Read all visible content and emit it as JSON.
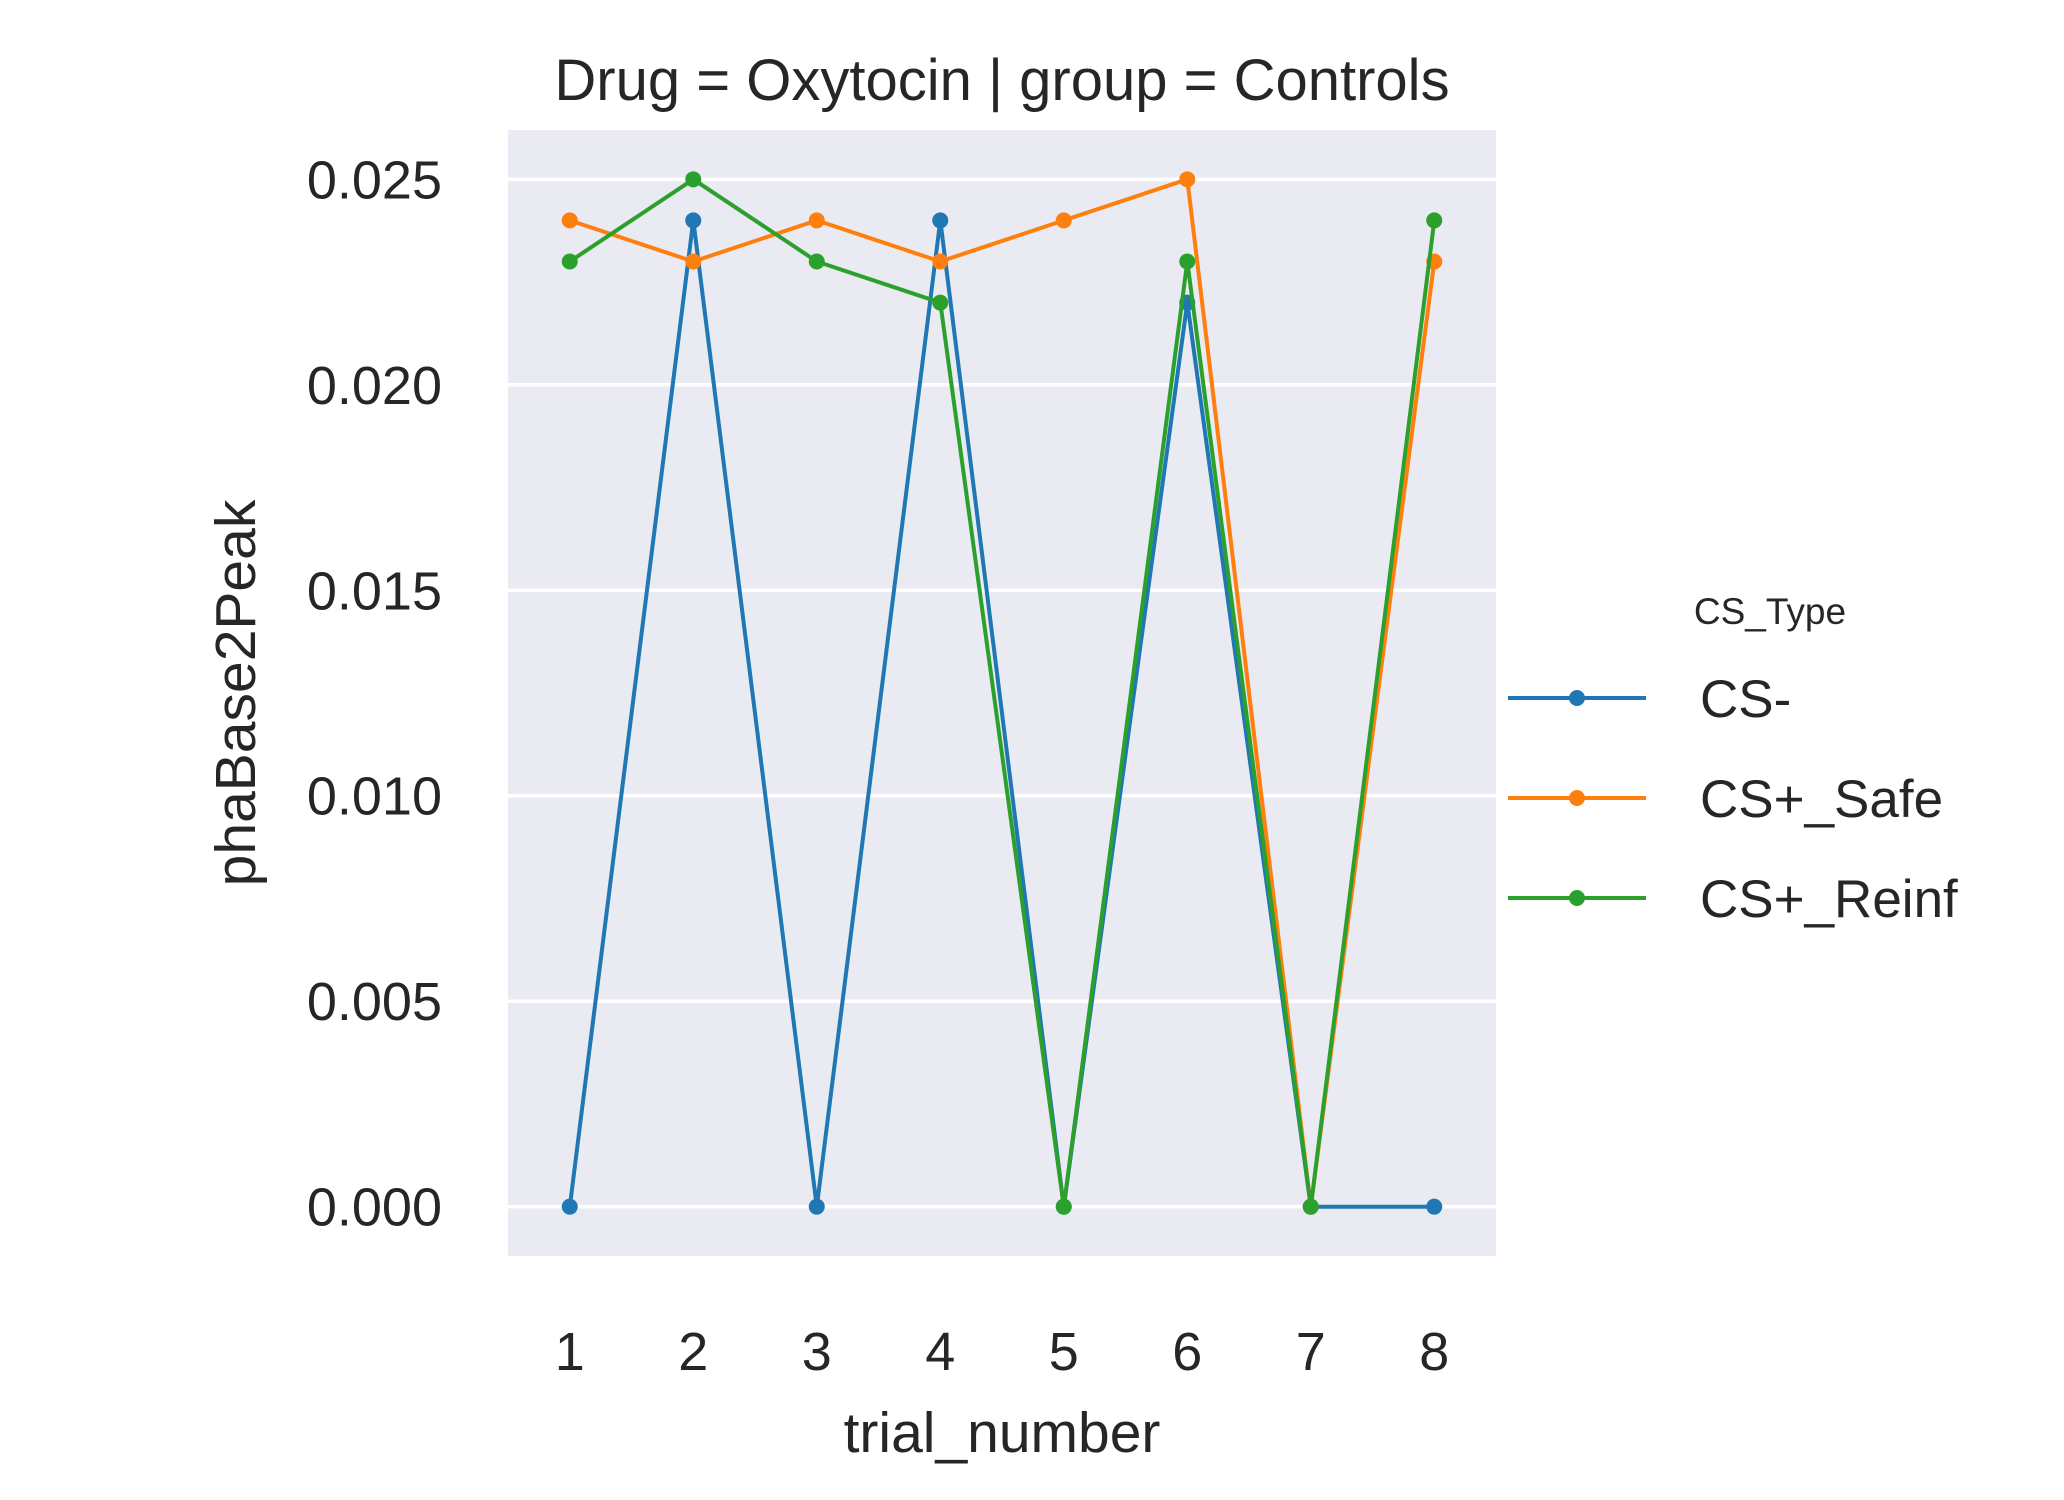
{
  "chart_data": {
    "type": "line",
    "title": "Drug = Oxytocin | group = Controls",
    "xlabel": "trial_number",
    "ylabel": "phaBase2Peak",
    "x": [
      1,
      2,
      3,
      4,
      5,
      6,
      7,
      8
    ],
    "x_ticks": [
      "1",
      "2",
      "3",
      "4",
      "5",
      "6",
      "7",
      "8"
    ],
    "y_ticks": [
      "0.000",
      "0.005",
      "0.010",
      "0.015",
      "0.020",
      "0.025"
    ],
    "ylim": [
      -0.0012,
      0.0262
    ],
    "grid": true,
    "legend": {
      "title": "CS_Type",
      "placement": "right"
    },
    "series": [
      {
        "name": "CS-",
        "color": "#1f77b4",
        "values": [
          0.0,
          0.024,
          0.0,
          0.024,
          0.0,
          0.022,
          0.0,
          0.0
        ]
      },
      {
        "name": "CS+_Safe",
        "color": "#ff7f0e",
        "values": [
          0.024,
          0.023,
          0.024,
          0.023,
          0.024,
          0.025,
          0.0,
          0.023
        ]
      },
      {
        "name": "CS+_Reinf",
        "color": "#2ca02c",
        "values": [
          0.023,
          0.025,
          0.023,
          0.022,
          0.0,
          0.023,
          0.0,
          0.024
        ]
      }
    ],
    "colors": {
      "plot_background": "#eaeaf2",
      "grid": "#ffffff"
    }
  }
}
